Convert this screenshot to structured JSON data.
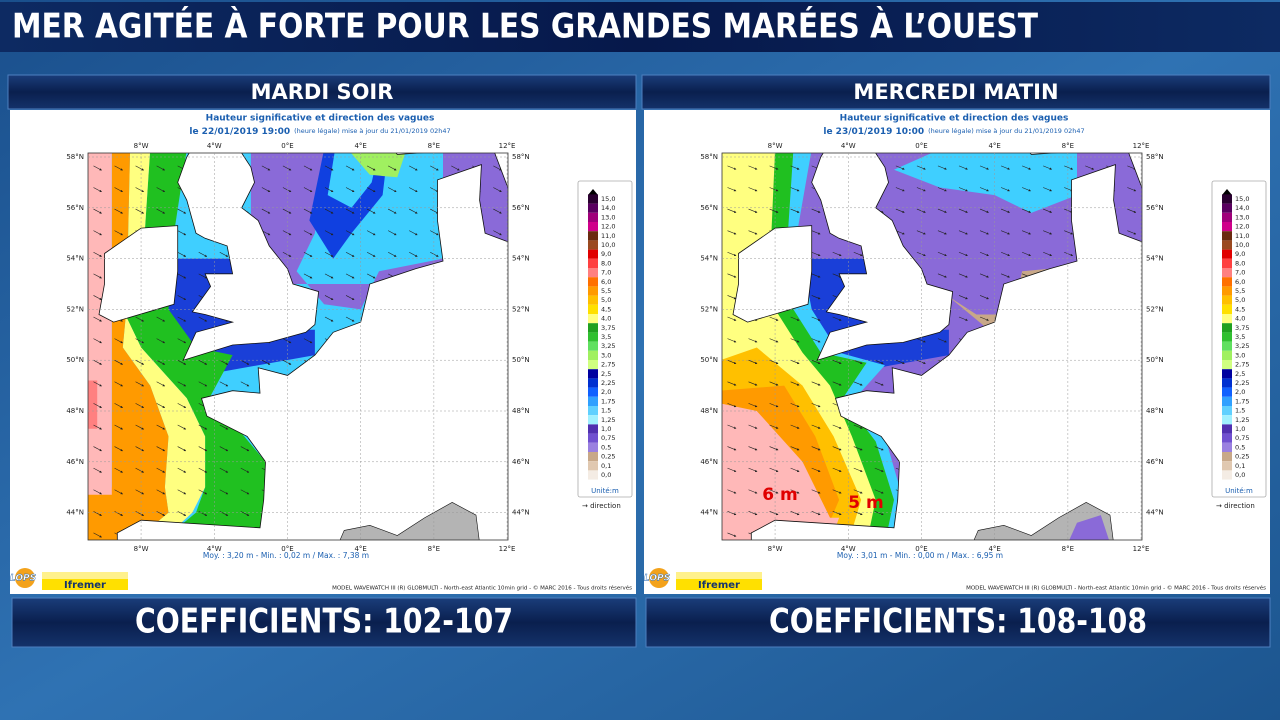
{
  "title": "MER AGITÉE À FORTE POUR LES GRANDES MARÉES À L’OUEST",
  "panels": [
    {
      "header": "MARDI SOIR",
      "map": {
        "title": "Hauteur significative et direction des vagues",
        "date": "le 22/01/2019 19:00",
        "date_note": "(heure légale) mise à jour du 21/01/2019 02h47",
        "stats": "Moy. : 3,20 m  -  Min. : 0,02 m / Max. : 7,38 m",
        "annotations": []
      },
      "coefficients": "COEFFICIENTS: 102-107"
    },
    {
      "header": "MERCREDI MATIN",
      "map": {
        "title": "Hauteur significative et direction des vagues",
        "date": "le 23/01/2019 10:00",
        "date_note": "(heure légale) mise à jour du 21/01/2019 02h47",
        "stats": "Moy. : 3,01 m  -  Min. : 0,00 m / Max. : 6,95 m",
        "annotations": [
          "6 m",
          "5 m"
        ]
      },
      "coefficients": "COEFFICIENTS: 108-108"
    }
  ],
  "map_axes": {
    "lon_labels": [
      "8°W",
      "4°W",
      "0°E",
      "4°E",
      "8°E",
      "12°E"
    ],
    "lat_labels": [
      "58°N",
      "56°N",
      "54°N",
      "52°N",
      "50°N",
      "48°N",
      "46°N",
      "44°N"
    ]
  },
  "legend": {
    "levels": [
      "15,0",
      "14,0",
      "13,0",
      "12,0",
      "11,0",
      "10,0",
      "9,0",
      "8,0",
      "7,0",
      "6,0",
      "5,5",
      "5,0",
      "4,5",
      "4,0",
      "3,75",
      "3,5",
      "3,25",
      "3,0",
      "2,75",
      "2,5",
      "2,25",
      "2,0",
      "1,75",
      "1,5",
      "1,25",
      "1,0",
      "0,75",
      "0,5",
      "0,25",
      "0,1",
      "0,0"
    ],
    "colors": [
      "#2a0030",
      "#5a0060",
      "#a0007a",
      "#d0008a",
      "#6a2a10",
      "#9a4a20",
      "#e00000",
      "#ff4040",
      "#ff8080",
      "#ff7000",
      "#ff9a00",
      "#ffc000",
      "#ffe000",
      "#ffff80",
      "#20a020",
      "#30c030",
      "#60e060",
      "#a0f060",
      "#d0ff80",
      "#0000a0",
      "#0030d0",
      "#1060ff",
      "#30a0ff",
      "#60d0ff",
      "#a0f0ff",
      "#5030b0",
      "#7050d0",
      "#9a80e0",
      "#c8a888",
      "#e0c8b0",
      "#f4ece4"
    ],
    "unit": "Unité:m",
    "direction": "→ direction"
  },
  "credit": "MODEL WAVEWATCH III (R) GLOBMULTI - North-east Atlantic 10min grid - © MARC 2016 - Tous droits réservés",
  "logos": [
    "LOPS",
    "Ifremer"
  ]
}
